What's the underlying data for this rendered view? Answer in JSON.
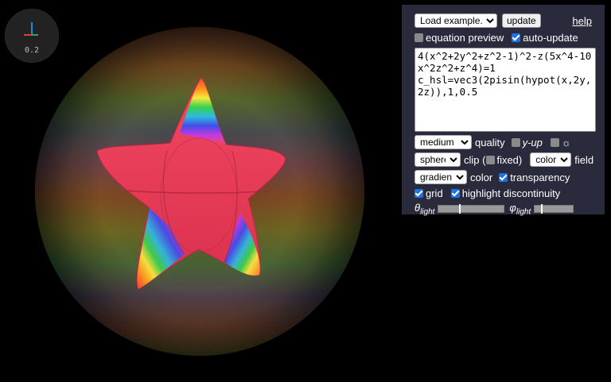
{
  "view": {
    "zoom_value": "0.2"
  },
  "panel": {
    "example_select": "Load example...",
    "update_label": "update",
    "help_label": "help",
    "equation_preview": {
      "label": "equation preview",
      "checked": false
    },
    "auto_update": {
      "label": "auto-update",
      "checked": true
    },
    "equation_text": "4(x^2+2y^2+z^2-1)^2-z(5x^4-10x^2z^2+z^4)=1\nc_hsl=vec3(2pisin(hypot(x,2y,2z)),1,0.5",
    "quality": {
      "select": "medium",
      "label": "quality"
    },
    "y_up": {
      "label": "y-up",
      "checked": false
    },
    "light_toggle": {
      "label": "☼",
      "checked": false
    },
    "clip": {
      "select": "sphere",
      "label_prefix": "clip (",
      "fixed_label": "fixed)",
      "fixed_checked": false
    },
    "field": {
      "select": "color",
      "label": "field"
    },
    "color_mode": {
      "select": "gradient",
      "label": "color"
    },
    "transparency": {
      "label": "transparency",
      "checked": true
    },
    "grid": {
      "label": "grid",
      "checked": true
    },
    "highlight_discontinuity": {
      "label": "highlight discontinuity",
      "checked": true
    },
    "theta_light": {
      "symbol": "θ",
      "subscript": "light",
      "value": 0.32
    },
    "phi_light": {
      "symbol": "φ",
      "subscript": "light",
      "value": 0.18
    }
  },
  "colors": {
    "panel_bg": "#2a2a3d",
    "checkbox_on": "#1a73e8",
    "star_main": "#e8365a",
    "axis_x": "#e53935",
    "axis_y": "#43a047",
    "axis_z": "#1e88e5"
  }
}
